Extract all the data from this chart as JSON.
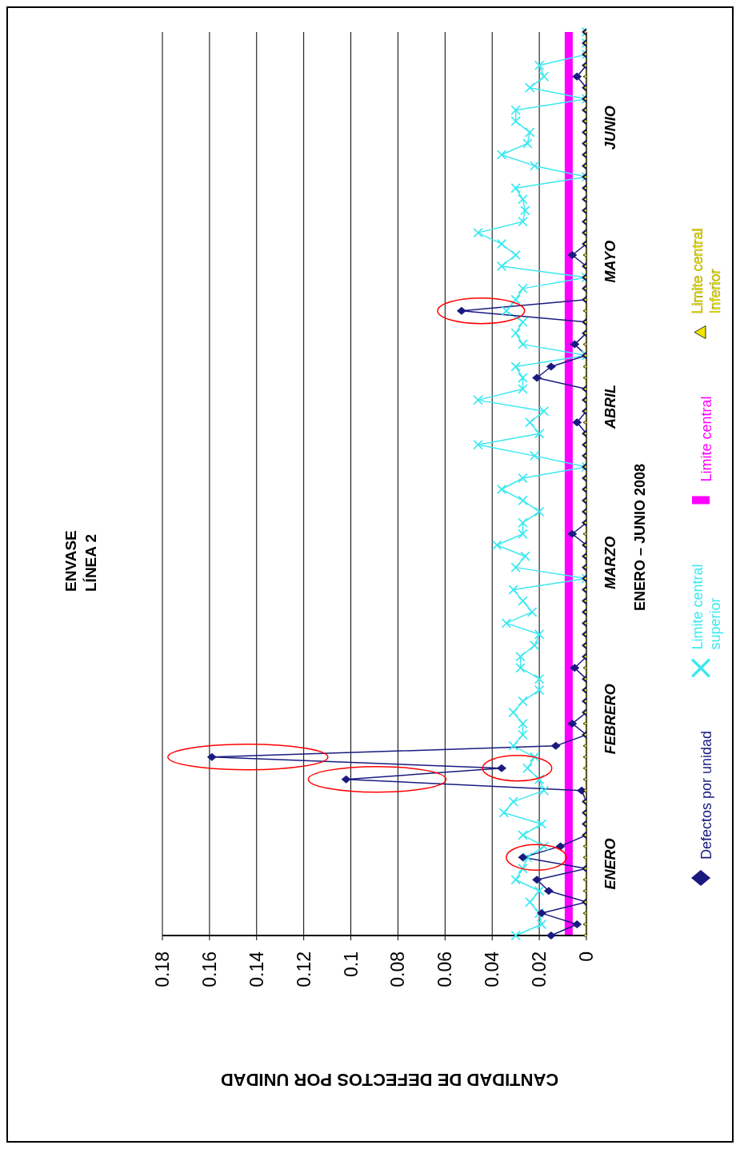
{
  "chart_data": {
    "type": "line",
    "orientation": "horizontal",
    "title": "ENVASE LÍNEA 2",
    "xlabel": "CANTIDAD DE DEFECTOS POR UNIDAD",
    "ylabel": "ENERO – JUNIO 2008",
    "categories": [
      null,
      null,
      null,
      null,
      null,
      null,
      null,
      null,
      null,
      "JUNIO",
      null,
      null,
      null,
      null,
      null,
      null,
      null,
      null,
      null,
      null,
      null,
      "MAYO",
      null,
      null,
      null,
      null,
      null,
      null,
      null,
      null,
      null,
      null,
      null,
      null,
      "ABRIL",
      null,
      null,
      null,
      null,
      null,
      null,
      null,
      null,
      null,
      null,
      null,
      null,
      null,
      "MARZO",
      null,
      null,
      null,
      null,
      null,
      null,
      null,
      null,
      null,
      null,
      null,
      null,
      null,
      "FEBRERO",
      null,
      null,
      null,
      null,
      null,
      null,
      null,
      null,
      null,
      null,
      null,
      null,
      "ENERO",
      null,
      null,
      null,
      null,
      null,
      null
    ],
    "xlim": [
      0.18,
      0
    ],
    "xticks": [
      0.18,
      0.16,
      0.14,
      0.12,
      0.1,
      0.08,
      0.06,
      0.04,
      0.02,
      0
    ],
    "grid": "x",
    "legend": "right",
    "line_style": "solid",
    "series": [
      {
        "name": "Defectos por unidad",
        "color": "#1a1a80",
        "marker": "diamond",
        "values": [
          0,
          0,
          0,
          0,
          0.004,
          0,
          0,
          0,
          0,
          0,
          0,
          0,
          0,
          0,
          0,
          0,
          0,
          0,
          0,
          0,
          0.006,
          0,
          0,
          0,
          0,
          0.053,
          0,
          0,
          0.005,
          0,
          0.015,
          0.021,
          0,
          0,
          0,
          0.004,
          0,
          0,
          0,
          0,
          0,
          0,
          0,
          0,
          0,
          0.006,
          0,
          0,
          0,
          0,
          0,
          0,
          0,
          0,
          0,
          0,
          0,
          0.005,
          0,
          0,
          0,
          0,
          0.006,
          0,
          0.013,
          0.159,
          0.036,
          0.102,
          0.002,
          0,
          0,
          0,
          0,
          0.011,
          0.027,
          0,
          0.021,
          0.016,
          0,
          0.019,
          0.004,
          0.015
        ]
      },
      {
        "name": "Limite central superior",
        "color": "#3ce8f0",
        "marker": "cross",
        "values": [
          0,
          0,
          0,
          0.02,
          0.018,
          0.024,
          0,
          0.03,
          0.03,
          0.024,
          0.025,
          0.036,
          0.022,
          0,
          0.03,
          0.027,
          0.026,
          0.027,
          0.046,
          0.036,
          0.03,
          0.036,
          0,
          0.027,
          0.03,
          0.034,
          0.027,
          0.03,
          0.027,
          0,
          0.03,
          0.027,
          0.027,
          0.046,
          0.018,
          0.024,
          0.02,
          0.046,
          0.022,
          0,
          0.027,
          0.036,
          0.027,
          0.02,
          0.027,
          0.027,
          0.038,
          0.026,
          0.03,
          0,
          0.031,
          0.027,
          0.023,
          0.034,
          0.02,
          0.022,
          0.028,
          0.028,
          0.02,
          0.02,
          0.027,
          0.031,
          0.027,
          0.027,
          0.031,
          0.022,
          0.025,
          0.02,
          0.018,
          0.031,
          0.035,
          0.019,
          0.027,
          0.018,
          0.025,
          0.027,
          0.03,
          0.02,
          0.024,
          0.02,
          0.019,
          0.03
        ]
      },
      {
        "name": "Limite central",
        "color": "#ff00ff",
        "marker": "none",
        "values": [
          0.0075,
          0.0075,
          0.0075,
          0.0075,
          0.0075,
          0.0075,
          0.0075,
          0.0075,
          0.0075,
          0.0075,
          0.0075,
          0.0075,
          0.0075,
          0.0075,
          0.0075,
          0.0075,
          0.0075,
          0.0075,
          0.0075,
          0.0075,
          0.0075,
          0.0075,
          0.0075,
          0.0075,
          0.0075,
          0.0075,
          0.0075,
          0.0075,
          0.0075,
          0.0075,
          0.0075,
          0.0075,
          0.0075,
          0.0075,
          0.0075,
          0.0075,
          0.0075,
          0.0075,
          0.0075,
          0.0075,
          0.0075,
          0.0075,
          0.0075,
          0.0075,
          0.0075,
          0.0075,
          0.0075,
          0.0075,
          0.0075,
          0.0075,
          0.0075,
          0.0075,
          0.0075,
          0.0075,
          0.0075,
          0.0075,
          0.0075,
          0.0075,
          0.0075,
          0.0075,
          0.0075,
          0.0075,
          0.0075,
          0.0075,
          0.0075,
          0.0075,
          0.0075,
          0.0075,
          0.0075,
          0.0075,
          0.0075,
          0.0075,
          0.0075,
          0.0075,
          0.0075,
          0.0075,
          0.0075,
          0.0075,
          0.0075,
          0.0075,
          0.0075,
          0.0075
        ]
      },
      {
        "name": "Limite central Inferior",
        "color": "#f0e600",
        "marker": "triangle",
        "values": [
          0,
          0,
          0,
          0,
          0,
          0,
          0,
          0,
          0,
          0,
          0,
          0,
          0,
          0,
          0,
          0,
          0,
          0,
          0,
          0,
          0,
          0,
          0,
          0,
          0,
          0,
          0,
          0,
          0,
          0,
          0,
          0,
          0,
          0,
          0,
          0,
          0,
          0,
          0,
          0,
          0,
          0,
          0,
          0,
          0,
          0,
          0,
          0,
          0,
          0,
          0,
          0,
          0,
          0,
          0,
          0,
          0,
          0,
          0,
          0,
          0,
          0,
          0,
          0,
          0,
          0,
          0,
          0,
          0,
          0,
          0,
          0,
          0,
          0,
          0,
          0,
          0,
          0,
          0,
          0,
          0,
          0
        ]
      }
    ]
  }
}
